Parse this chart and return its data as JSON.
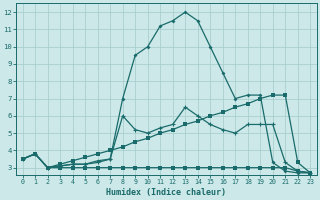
{
  "xlabel": "Humidex (Indice chaleur)",
  "background_color": "#cce8e8",
  "grid_color": "#aacece",
  "line_color": "#1a6b6b",
  "xlim": [
    -0.5,
    23.5
  ],
  "ylim": [
    2.6,
    12.5
  ],
  "xticks": [
    0,
    1,
    2,
    3,
    4,
    5,
    6,
    7,
    8,
    9,
    10,
    11,
    12,
    13,
    14,
    15,
    16,
    17,
    18,
    19,
    20,
    21,
    22,
    23
  ],
  "yticks": [
    3,
    4,
    5,
    6,
    7,
    8,
    9,
    10,
    11,
    12
  ],
  "curve_peak_x": [
    0,
    1,
    2,
    3,
    4,
    5,
    6,
    7,
    8,
    9,
    10,
    11,
    12,
    13,
    14,
    15,
    16,
    17,
    18,
    19,
    20,
    21,
    22,
    23
  ],
  "curve_peak_y": [
    3.5,
    3.8,
    3.0,
    3.1,
    3.2,
    3.2,
    3.4,
    3.5,
    7.0,
    9.5,
    10.0,
    11.2,
    11.5,
    12.0,
    11.5,
    10.0,
    8.5,
    7.0,
    7.2,
    7.2,
    3.3,
    2.8,
    2.7,
    2.7
  ],
  "curve_med_x": [
    0,
    1,
    2,
    3,
    4,
    5,
    6,
    7,
    8,
    9,
    10,
    11,
    12,
    13,
    14,
    15,
    16,
    17,
    18,
    19,
    20,
    21,
    22,
    23
  ],
  "curve_med_y": [
    3.5,
    3.8,
    3.0,
    3.1,
    3.2,
    3.2,
    3.3,
    3.5,
    6.0,
    5.2,
    5.0,
    5.3,
    5.5,
    6.5,
    6.0,
    5.5,
    5.2,
    5.0,
    5.5,
    5.5,
    5.5,
    3.3,
    2.8,
    2.7
  ],
  "curve_linear_x": [
    0,
    1,
    2,
    3,
    4,
    5,
    6,
    7,
    8,
    9,
    10,
    11,
    12,
    13,
    14,
    15,
    16,
    17,
    18,
    19,
    20,
    21,
    22,
    23
  ],
  "curve_linear_y": [
    3.5,
    3.8,
    3.0,
    3.2,
    3.4,
    3.6,
    3.8,
    4.0,
    4.2,
    4.5,
    4.7,
    5.0,
    5.2,
    5.5,
    5.7,
    6.0,
    6.2,
    6.5,
    6.7,
    7.0,
    7.2,
    7.2,
    3.3,
    2.7
  ],
  "curve_flat_x": [
    0,
    1,
    2,
    3,
    4,
    5,
    6,
    7,
    8,
    9,
    10,
    11,
    12,
    13,
    14,
    15,
    16,
    17,
    18,
    19,
    20,
    21,
    22,
    23
  ],
  "curve_flat_y": [
    3.5,
    3.8,
    3.0,
    3.0,
    3.0,
    3.0,
    3.0,
    3.0,
    3.0,
    3.0,
    3.0,
    3.0,
    3.0,
    3.0,
    3.0,
    3.0,
    3.0,
    3.0,
    3.0,
    3.0,
    3.0,
    3.0,
    2.8,
    2.7
  ]
}
